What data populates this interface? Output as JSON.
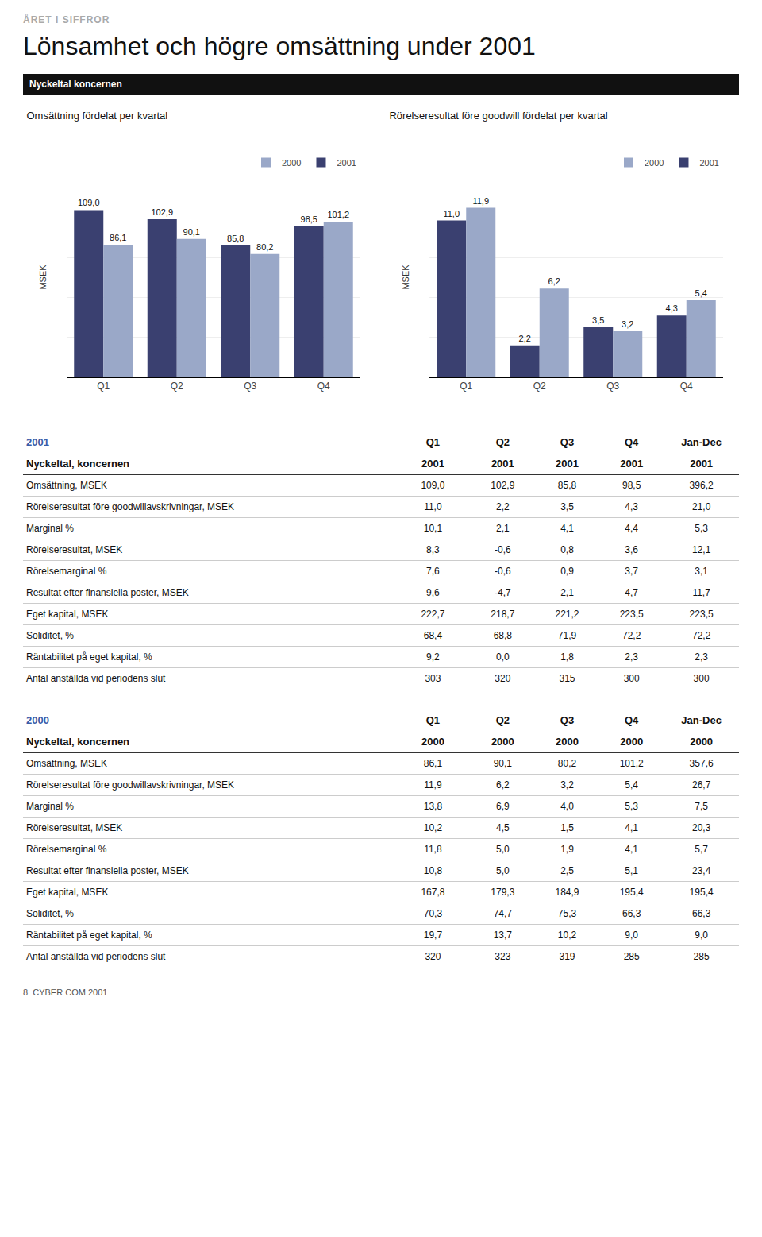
{
  "page_title": "ÅRET I SIFFROR",
  "main_title": "Lönsamhet och högre omsättning under 2001",
  "section_header": "Nyckeltal koncernen",
  "chart_data": [
    {
      "type": "bar",
      "title": "Omsättning fördelat per kvartal",
      "ylabel": "MSEK",
      "categories": [
        "Q1",
        "Q2",
        "Q3",
        "Q4"
      ],
      "series": [
        {
          "name": "2001",
          "color": "#3a4070",
          "values": [
            109.0,
            102.9,
            85.8,
            98.5
          ],
          "value_labels": [
            "109,0",
            "102,9",
            "85,8",
            "98,5"
          ]
        },
        {
          "name": "2000",
          "color": "#9aa8c8",
          "values": [
            86.1,
            90.1,
            80.2,
            101.2
          ],
          "value_labels": [
            "86,1",
            "90,1",
            "80,2",
            "101,2"
          ]
        }
      ],
      "ylim": [
        0,
        130
      ],
      "yticks": [
        0,
        26,
        52,
        78,
        104,
        130
      ],
      "grid": true,
      "legend": "upper right",
      "data_labels": true,
      "tick_labels": "x"
    },
    {
      "type": "bar",
      "title": "Rörelseresultat före goodwill fördelat per kvartal",
      "ylabel": "MSEK",
      "categories": [
        "Q1",
        "Q2",
        "Q3",
        "Q4"
      ],
      "series": [
        {
          "name": "2001",
          "color": "#3a4070",
          "values": [
            11.0,
            2.2,
            3.5,
            4.3
          ],
          "value_labels": [
            "11,0",
            "2,2",
            "3,5",
            "4,3"
          ]
        },
        {
          "name": "2000",
          "color": "#9aa8c8",
          "values": [
            11.9,
            6.2,
            3.2,
            5.4
          ],
          "value_labels": [
            "11,9",
            "6,2",
            "3,2",
            "5,4"
          ]
        }
      ],
      "ylim": [
        0,
        14
      ],
      "yticks": [
        0,
        2.8,
        5.6,
        8.4,
        11.2,
        14
      ],
      "grid": true,
      "legend": "upper right",
      "data_labels": true,
      "tick_labels": "x"
    }
  ],
  "tables": [
    {
      "year_label": "2001",
      "year_color": "#3a5ca8",
      "header_cols": [
        "Q1",
        "Q2",
        "Q3",
        "Q4",
        "Jan-Dec"
      ],
      "subheader_label": "Nyckeltal, koncernen",
      "subheader_cols": [
        "2001",
        "2001",
        "2001",
        "2001",
        "2001"
      ],
      "rows": [
        [
          "Omsättning, MSEK",
          "109,0",
          "102,9",
          "85,8",
          "98,5",
          "396,2"
        ],
        [
          "Rörelseresultat före goodwillavskrivningar, MSEK",
          "11,0",
          "2,2",
          "3,5",
          "4,3",
          "21,0"
        ],
        [
          "Marginal %",
          "10,1",
          "2,1",
          "4,1",
          "4,4",
          "5,3"
        ],
        [
          "Rörelseresultat, MSEK",
          "8,3",
          "-0,6",
          "0,8",
          "3,6",
          "12,1"
        ],
        [
          "Rörelsemarginal %",
          "7,6",
          "-0,6",
          "0,9",
          "3,7",
          "3,1"
        ],
        [
          "Resultat efter finansiella poster, MSEK",
          "9,6",
          "-4,7",
          "2,1",
          "4,7",
          "11,7"
        ],
        [
          "Eget kapital, MSEK",
          "222,7",
          "218,7",
          "221,2",
          "223,5",
          "223,5"
        ],
        [
          "Soliditet, %",
          "68,4",
          "68,8",
          "71,9",
          "72,2",
          "72,2"
        ],
        [
          "Räntabilitet på eget kapital, %",
          "9,2",
          "0,0",
          "1,8",
          "2,3",
          "2,3"
        ],
        [
          "Antal anställda vid periodens slut",
          "303",
          "320",
          "315",
          "300",
          "300"
        ]
      ]
    },
    {
      "year_label": "2000",
      "year_color": "#3a5ca8",
      "header_cols": [
        "Q1",
        "Q2",
        "Q3",
        "Q4",
        "Jan-Dec"
      ],
      "subheader_label": "Nyckeltal, koncernen",
      "subheader_cols": [
        "2000",
        "2000",
        "2000",
        "2000",
        "2000"
      ],
      "rows": [
        [
          "Omsättning, MSEK",
          "86,1",
          "90,1",
          "80,2",
          "101,2",
          "357,6"
        ],
        [
          "Rörelseresultat före goodwillavskrivningar, MSEK",
          "11,9",
          "6,2",
          "3,2",
          "5,4",
          "26,7"
        ],
        [
          "Marginal %",
          "13,8",
          "6,9",
          "4,0",
          "5,3",
          "7,5"
        ],
        [
          "Rörelseresultat, MSEK",
          "10,2",
          "4,5",
          "1,5",
          "4,1",
          "20,3"
        ],
        [
          "Rörelsemarginal %",
          "11,8",
          "5,0",
          "1,9",
          "4,1",
          "5,7"
        ],
        [
          "Resultat efter finansiella poster, MSEK",
          "10,8",
          "5,0",
          "2,5",
          "5,1",
          "23,4"
        ],
        [
          "Eget kapital, MSEK",
          "167,8",
          "179,3",
          "184,9",
          "195,4",
          "195,4"
        ],
        [
          "Soliditet, %",
          "70,3",
          "74,7",
          "75,3",
          "66,3",
          "66,3"
        ],
        [
          "Räntabilitet på eget kapital, %",
          "19,7",
          "13,7",
          "10,2",
          "9,0",
          "9,0"
        ],
        [
          "Antal anställda vid periodens slut",
          "320",
          "323",
          "319",
          "285",
          "285"
        ]
      ]
    }
  ],
  "footer": "8  CYBER COM 2001"
}
